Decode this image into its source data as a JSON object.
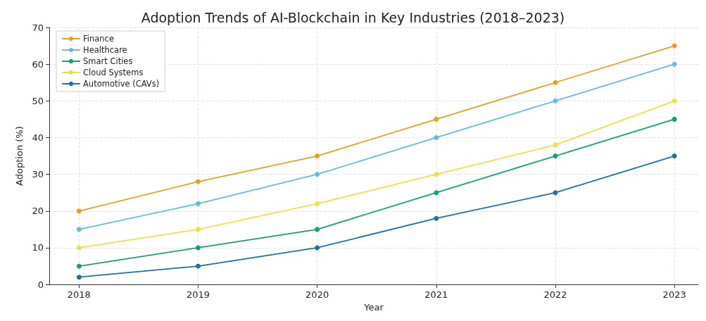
{
  "chart_data": {
    "type": "line",
    "title": "Adoption Trends of AI-Blockchain in Key Industries (2018–2023)",
    "xlabel": "Year",
    "ylabel": "Adoption (%)",
    "x": [
      2018,
      2019,
      2020,
      2021,
      2022,
      2023
    ],
    "series": [
      {
        "name": "Finance",
        "color": "#e6a21e",
        "values": [
          20,
          28,
          35,
          45,
          55,
          65
        ]
      },
      {
        "name": "Healthcare",
        "color": "#6cb8e0",
        "values": [
          15,
          22,
          30,
          40,
          50,
          60
        ]
      },
      {
        "name": "Smart Cities",
        "color": "#1a9e77",
        "values": [
          5,
          10,
          15,
          25,
          35,
          45
        ]
      },
      {
        "name": "Cloud Systems",
        "color": "#ede04a",
        "values": [
          10,
          15,
          22,
          30,
          38,
          50
        ]
      },
      {
        "name": "Automotive (CAVs)",
        "color": "#1f6fa8",
        "values": [
          2,
          5,
          10,
          18,
          25,
          35
        ]
      }
    ],
    "xlim": [
      2017.75,
      2023.2
    ],
    "xticks": [
      2018,
      2019,
      2020,
      2021,
      2022,
      2023
    ],
    "ylim": [
      0,
      70
    ],
    "yticks": [
      0,
      10,
      20,
      30,
      40,
      50,
      60,
      70
    ],
    "grid": true,
    "legend": "top left",
    "marker": "circle",
    "line_style": "solid"
  }
}
